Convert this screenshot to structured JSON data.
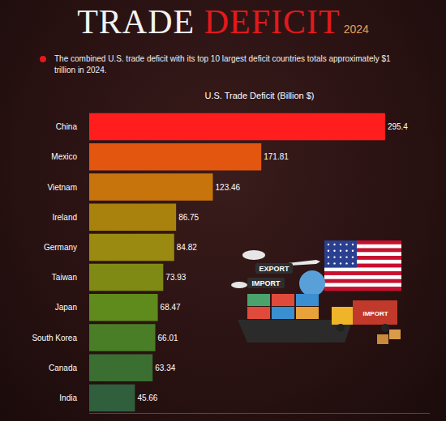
{
  "header": {
    "title": "TRADE DEFICIT",
    "year": "2024",
    "note": "The combined U.S. trade deficit with its top 10 largest deficit countries totals approximately $1 trillion in 2024."
  },
  "illustration": {
    "labels": [
      "EXPORT",
      "IMPORT",
      "IMPORT"
    ]
  },
  "chart_data": {
    "type": "bar",
    "title": "U.S. Trade Deficit (Billion $)",
    "orientation": "horizontal",
    "categories": [
      "China",
      "Mexico",
      "Vietnam",
      "Ireland",
      "Germany",
      "Taiwan",
      "Japan",
      "South Korea",
      "Canada",
      "India"
    ],
    "values": [
      295.4,
      171.81,
      123.46,
      86.75,
      84.82,
      73.93,
      68.47,
      66.01,
      63.34,
      45.66
    ],
    "colors": [
      "#ff1d1d",
      "#e3560f",
      "#c8740c",
      "#a8820c",
      "#9a8a12",
      "#7e8a14",
      "#5f8a1c",
      "#4a7e26",
      "#3b6e31",
      "#2f5f3d"
    ],
    "xlim": [
      0,
      340
    ],
    "grid": false,
    "data_labels": true,
    "tick_labels": "y"
  }
}
